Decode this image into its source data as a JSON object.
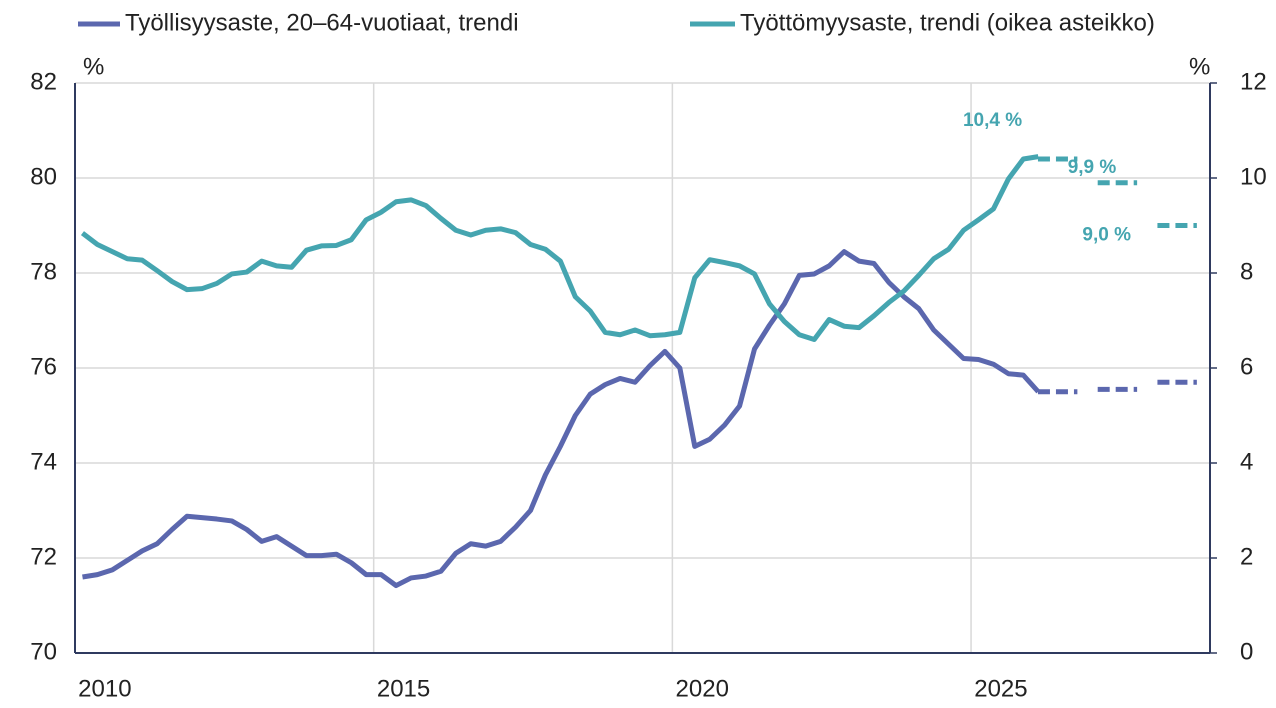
{
  "chart_data": {
    "type": "line",
    "y_unit": "%",
    "y2_unit": "%",
    "xlim": [
      2010,
      2029
    ],
    "xticks": [
      {
        "value": 2010.5,
        "label": "2010"
      },
      {
        "value": 2015.5,
        "label": "2015"
      },
      {
        "value": 2020.5,
        "label": "2020"
      },
      {
        "value": 2025.5,
        "label": "2025"
      }
    ],
    "xgrid": [
      2015,
      2020,
      2025
    ],
    "ylim": [
      70,
      82
    ],
    "yticks": [
      70,
      72,
      74,
      76,
      78,
      80,
      82
    ],
    "y2lim": [
      0,
      12
    ],
    "y2ticks": [
      0,
      2,
      4,
      6,
      8,
      10,
      12
    ],
    "grid": true,
    "legend": "top",
    "x": [
      2010.125,
      2010.375,
      2010.625,
      2010.875,
      2011.125,
      2011.375,
      2011.625,
      2011.875,
      2012.125,
      2012.375,
      2012.625,
      2012.875,
      2013.125,
      2013.375,
      2013.625,
      2013.875,
      2014.125,
      2014.375,
      2014.625,
      2014.875,
      2015.125,
      2015.375,
      2015.625,
      2015.875,
      2016.125,
      2016.375,
      2016.625,
      2016.875,
      2017.125,
      2017.375,
      2017.625,
      2017.875,
      2018.125,
      2018.375,
      2018.625,
      2018.875,
      2019.125,
      2019.375,
      2019.625,
      2019.875,
      2020.125,
      2020.375,
      2020.625,
      2020.875,
      2021.125,
      2021.375,
      2021.625,
      2021.875,
      2022.125,
      2022.375,
      2022.625,
      2022.875,
      2023.125,
      2023.375,
      2023.625,
      2023.875,
      2024.125,
      2024.375,
      2024.625,
      2024.875,
      2025.125,
      2025.375,
      2025.625,
      2025.875,
      2026.125
    ],
    "series": [
      {
        "name": "Työllisyysaste, 20–64-vuotiaat, trendi",
        "color": "#5b67ae",
        "axis": "y",
        "values": [
          71.6,
          71.65,
          71.75,
          71.95,
          72.15,
          72.3,
          72.6,
          72.88,
          72.85,
          72.82,
          72.78,
          72.6,
          72.35,
          72.45,
          72.25,
          72.05,
          72.05,
          72.08,
          71.9,
          71.65,
          71.65,
          71.42,
          71.58,
          71.62,
          71.72,
          72.1,
          72.3,
          72.25,
          72.35,
          72.65,
          73.0,
          73.75,
          74.35,
          75.0,
          75.45,
          75.65,
          75.78,
          75.7,
          76.05,
          76.35,
          76.0,
          74.35,
          74.5,
          74.8,
          75.2,
          76.4,
          76.9,
          77.35,
          77.95,
          77.98,
          78.15,
          78.45,
          78.25,
          78.2,
          77.8,
          77.5,
          77.25,
          76.8,
          76.5,
          76.2,
          76.18,
          76.08,
          75.88,
          75.85,
          75.5
        ],
        "forecast": {
          "x": [
            2026,
            2027,
            2028
          ],
          "values": [
            75.5,
            75.55,
            75.7
          ]
        }
      },
      {
        "name": "Työttömyysaste, trendi (oikea asteikko)",
        "color": "#45a5b0",
        "axis": "y2",
        "values": [
          8.84,
          8.6,
          8.45,
          8.3,
          8.27,
          8.05,
          7.82,
          7.65,
          7.67,
          7.78,
          7.98,
          8.02,
          8.25,
          8.15,
          8.12,
          8.48,
          8.57,
          8.58,
          8.7,
          9.12,
          9.28,
          9.5,
          9.54,
          9.42,
          9.15,
          8.9,
          8.8,
          8.9,
          8.93,
          8.85,
          8.6,
          8.5,
          8.25,
          7.5,
          7.2,
          6.75,
          6.7,
          6.8,
          6.68,
          6.7,
          6.75,
          7.9,
          8.28,
          8.22,
          8.15,
          7.98,
          7.35,
          6.98,
          6.7,
          6.6,
          7.02,
          6.88,
          6.85,
          7.1,
          7.38,
          7.62,
          7.95,
          8.3,
          8.5,
          8.9,
          9.12,
          9.35,
          9.98,
          10.4,
          10.45
        ],
        "forecast": {
          "x": [
            2026,
            2027,
            2028
          ],
          "values": [
            10.4,
            9.9,
            9.0
          ],
          "value_labels": [
            "10,4 %",
            "9,9 %",
            "9,0 %"
          ]
        }
      }
    ]
  }
}
